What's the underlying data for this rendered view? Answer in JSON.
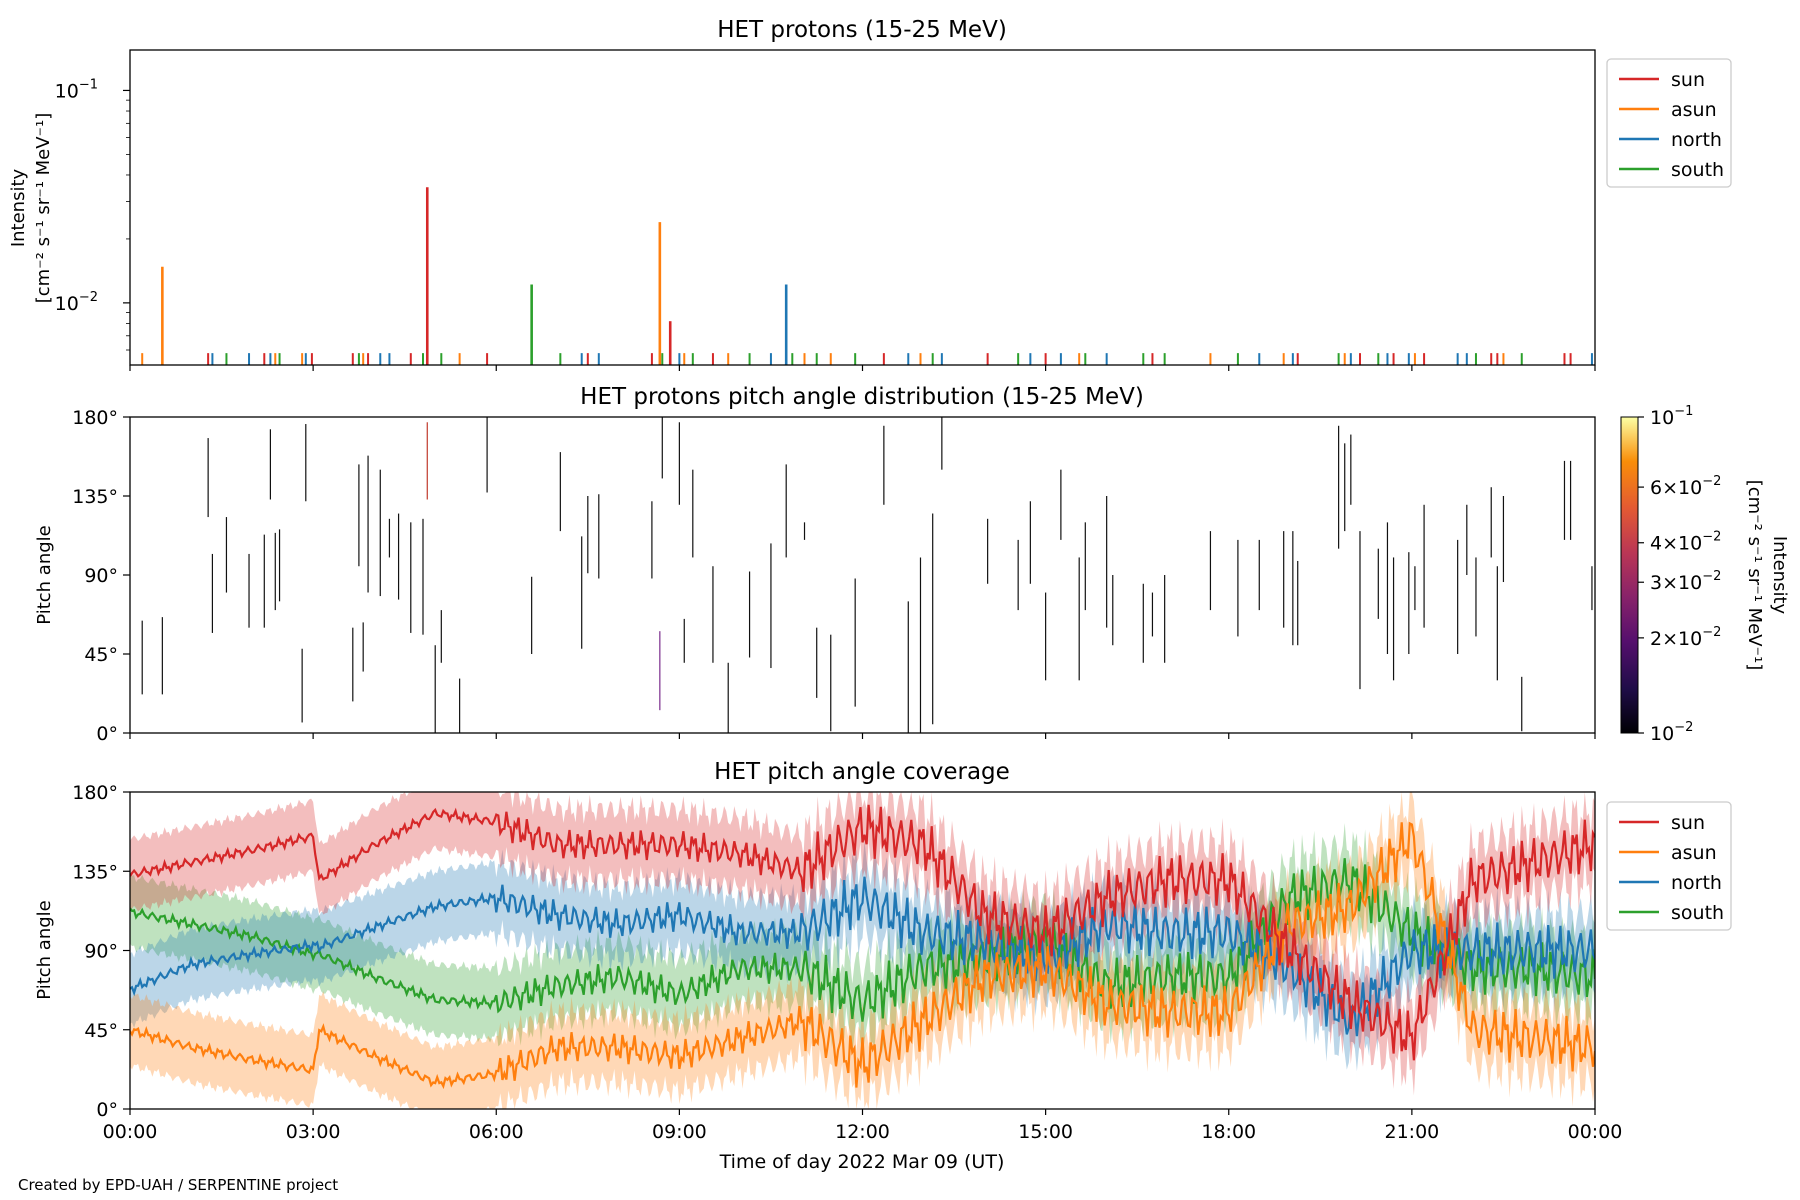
{
  "figure": {
    "credit": "Created by EPD-UAH / SERPENTINE project",
    "xlabel": "Time of day 2022 Mar 09 (UT)",
    "xticks": [
      "00:00",
      "03:00",
      "06:00",
      "09:00",
      "12:00",
      "15:00",
      "18:00",
      "21:00",
      "00:00"
    ]
  },
  "colors": {
    "sun": "#d62728",
    "asun": "#ff7f0e",
    "north": "#1f77b4",
    "south": "#2ca02c"
  },
  "chart_data": [
    {
      "type": "bar",
      "title": "HET protons (15-25 MeV)",
      "ylabel_line1": "Intensity",
      "ylabel_line2": "[cm⁻² s⁻¹ sr⁻¹ MeV⁻¹]",
      "yscale": "log",
      "ylim": [
        0.0051,
        0.155
      ],
      "yticks": [
        {
          "value": 0.1,
          "base": "10",
          "exp": "−1"
        },
        {
          "value": 0.01,
          "base": "10",
          "exp": "−2"
        }
      ],
      "xlim_hours": [
        0,
        24
      ],
      "legend": [
        "sun",
        "asun",
        "north",
        "south"
      ],
      "legend_position": "right",
      "spikes": [
        {
          "series": "sun",
          "t": 4.87,
          "value": 0.035
        },
        {
          "series": "asun",
          "t": 0.53,
          "value": 0.0148
        },
        {
          "series": "asun",
          "t": 8.68,
          "value": 0.024
        },
        {
          "series": "north",
          "t": 10.75,
          "value": 0.0122
        },
        {
          "series": "south",
          "t": 6.58,
          "value": 0.0122
        },
        {
          "series": "sun",
          "t": 8.85,
          "value": 0.0082
        }
      ],
      "small_value": 0.0058,
      "small_events": [
        [
          "asun",
          0.2
        ],
        [
          "sun",
          1.28
        ],
        [
          "north",
          1.35
        ],
        [
          "south",
          1.58
        ],
        [
          "north",
          1.95
        ],
        [
          "sun",
          2.2
        ],
        [
          "north",
          2.3
        ],
        [
          "asun",
          2.38
        ],
        [
          "south",
          2.45
        ],
        [
          "asun",
          2.82
        ],
        [
          "north",
          2.88
        ],
        [
          "sun",
          2.98
        ],
        [
          "sun",
          3.65
        ],
        [
          "south",
          3.75
        ],
        [
          "asun",
          3.82
        ],
        [
          "sun",
          3.9
        ],
        [
          "north",
          4.1
        ],
        [
          "north",
          4.25
        ],
        [
          "sun",
          4.6
        ],
        [
          "south",
          4.8
        ],
        [
          "south",
          5.1
        ],
        [
          "asun",
          5.4
        ],
        [
          "sun",
          5.85
        ],
        [
          "south",
          7.05
        ],
        [
          "north",
          7.4
        ],
        [
          "sun",
          7.5
        ],
        [
          "north",
          7.68
        ],
        [
          "sun",
          8.55
        ],
        [
          "south",
          8.72
        ],
        [
          "north",
          9.0
        ],
        [
          "asun",
          9.08
        ],
        [
          "south",
          9.22
        ],
        [
          "sun",
          9.55
        ],
        [
          "asun",
          9.8
        ],
        [
          "south",
          10.15
        ],
        [
          "north",
          10.5
        ],
        [
          "south",
          10.85
        ],
        [
          "asun",
          11.05
        ],
        [
          "south",
          11.25
        ],
        [
          "asun",
          11.48
        ],
        [
          "south",
          11.88
        ],
        [
          "sun",
          12.35
        ],
        [
          "north",
          12.75
        ],
        [
          "asun",
          12.95
        ],
        [
          "south",
          13.15
        ],
        [
          "north",
          13.3
        ],
        [
          "sun",
          14.05
        ],
        [
          "south",
          14.55
        ],
        [
          "north",
          14.75
        ],
        [
          "sun",
          15.0
        ],
        [
          "north",
          15.25
        ],
        [
          "asun",
          15.55
        ],
        [
          "south",
          15.65
        ],
        [
          "north",
          16.0
        ],
        [
          "south",
          16.6
        ],
        [
          "sun",
          16.75
        ],
        [
          "south",
          16.95
        ],
        [
          "asun",
          17.7
        ],
        [
          "south",
          18.15
        ],
        [
          "north",
          18.5
        ],
        [
          "asun",
          18.9
        ],
        [
          "north",
          19.05
        ],
        [
          "sun",
          19.13
        ],
        [
          "south",
          19.8
        ],
        [
          "asun",
          19.9
        ],
        [
          "north",
          20.0
        ],
        [
          "sun",
          20.15
        ],
        [
          "south",
          20.45
        ],
        [
          "north",
          20.6
        ],
        [
          "sun",
          20.7
        ],
        [
          "north",
          20.95
        ],
        [
          "asun",
          21.05
        ],
        [
          "sun",
          21.2
        ],
        [
          "north",
          21.75
        ],
        [
          "north",
          21.9
        ],
        [
          "south",
          22.05
        ],
        [
          "sun",
          22.3
        ],
        [
          "sun",
          22.4
        ],
        [
          "asun",
          22.5
        ],
        [
          "south",
          22.8
        ],
        [
          "sun",
          23.5
        ],
        [
          "sun",
          23.6
        ],
        [
          "north",
          23.95
        ]
      ]
    },
    {
      "type": "heatmap",
      "title": "HET protons pitch angle distribution (15-25 MeV)",
      "ylabel": "Pitch angle",
      "ylim": [
        0,
        180
      ],
      "yticks": [
        "0°",
        "45°",
        "90°",
        "135°",
        "180°"
      ],
      "colorbar_label_line1": "Intensity",
      "colorbar_label_line2": "[cm⁻² s⁻¹ sr⁻¹ MeV⁻¹]",
      "colorbar_scale": "log",
      "colorbar_range": [
        0.01,
        0.1
      ],
      "colorbar_ticks": [
        {
          "value": 0.1,
          "label": "10",
          "sup": "−1"
        },
        {
          "value": 0.06,
          "label": "6×10",
          "sup": "−2"
        },
        {
          "value": 0.04,
          "label": "4×10",
          "sup": "−2"
        },
        {
          "value": 0.03,
          "label": "3×10",
          "sup": "−2"
        },
        {
          "value": 0.02,
          "label": "2×10",
          "sup": "−2"
        },
        {
          "value": 0.01,
          "label": "10",
          "sup": "−2"
        }
      ],
      "colormap": "inferno",
      "segments": [
        [
          0.2,
          22,
          64
        ],
        [
          0.53,
          22,
          66
        ],
        [
          1.28,
          123,
          168
        ],
        [
          1.35,
          57,
          102
        ],
        [
          1.58,
          80,
          123
        ],
        [
          1.95,
          60,
          102
        ],
        [
          2.2,
          60,
          113
        ],
        [
          2.3,
          133,
          173
        ],
        [
          2.38,
          70,
          114
        ],
        [
          2.45,
          75,
          116
        ],
        [
          2.82,
          6,
          48
        ],
        [
          2.88,
          132,
          176
        ],
        [
          3.65,
          18,
          60
        ],
        [
          3.75,
          95,
          153
        ],
        [
          3.82,
          35,
          63
        ],
        [
          3.9,
          80,
          158
        ],
        [
          4.1,
          78,
          150
        ],
        [
          4.25,
          100,
          122
        ],
        [
          4.4,
          76,
          125
        ],
        [
          4.6,
          57,
          120
        ],
        [
          4.87,
          133,
          177
        ],
        [
          4.8,
          56,
          122
        ],
        [
          5.0,
          0,
          50
        ],
        [
          5.1,
          40,
          70
        ],
        [
          5.4,
          0,
          31
        ],
        [
          5.85,
          137,
          180
        ],
        [
          6.58,
          45,
          89
        ],
        [
          7.05,
          115,
          160
        ],
        [
          7.4,
          48,
          112
        ],
        [
          7.5,
          91,
          135
        ],
        [
          7.68,
          88,
          136
        ],
        [
          8.55,
          88,
          132
        ],
        [
          8.68,
          13,
          58
        ],
        [
          8.72,
          145,
          180
        ],
        [
          9.0,
          130,
          177
        ],
        [
          9.08,
          40,
          65
        ],
        [
          9.22,
          100,
          150
        ],
        [
          9.55,
          40,
          95
        ],
        [
          9.8,
          0,
          40
        ],
        [
          10.15,
          43,
          92
        ],
        [
          10.5,
          37,
          108
        ],
        [
          10.75,
          100,
          153
        ],
        [
          11.05,
          110,
          120
        ],
        [
          11.25,
          20,
          60
        ],
        [
          11.48,
          1,
          56
        ],
        [
          11.88,
          15,
          88
        ],
        [
          12.35,
          130,
          175
        ],
        [
          12.75,
          0,
          75
        ],
        [
          12.95,
          0,
          100
        ],
        [
          13.15,
          5,
          125
        ],
        [
          13.3,
          150,
          180
        ],
        [
          14.05,
          85,
          122
        ],
        [
          14.55,
          70,
          110
        ],
        [
          14.75,
          85,
          132
        ],
        [
          15.0,
          30,
          80
        ],
        [
          15.25,
          110,
          150
        ],
        [
          15.55,
          30,
          100
        ],
        [
          15.65,
          70,
          120
        ],
        [
          16.0,
          60,
          135
        ],
        [
          16.1,
          50,
          90
        ],
        [
          16.6,
          40,
          85
        ],
        [
          16.75,
          55,
          80
        ],
        [
          16.95,
          40,
          90
        ],
        [
          17.7,
          70,
          115
        ],
        [
          18.15,
          55,
          110
        ],
        [
          18.5,
          70,
          110
        ],
        [
          18.9,
          60,
          115
        ],
        [
          19.05,
          50,
          115
        ],
        [
          19.13,
          50,
          98
        ],
        [
          19.8,
          105,
          175
        ],
        [
          19.9,
          115,
          165
        ],
        [
          20.0,
          130,
          170
        ],
        [
          20.15,
          25,
          115
        ],
        [
          20.45,
          65,
          105
        ],
        [
          20.6,
          45,
          120
        ],
        [
          20.7,
          30,
          100
        ],
        [
          20.95,
          45,
          103
        ],
        [
          21.05,
          70,
          95
        ],
        [
          21.2,
          60,
          130
        ],
        [
          21.75,
          45,
          110
        ],
        [
          21.9,
          90,
          130
        ],
        [
          22.05,
          55,
          100
        ],
        [
          22.3,
          100,
          140
        ],
        [
          22.4,
          30,
          95
        ],
        [
          22.5,
          86,
          135
        ],
        [
          22.8,
          1,
          32
        ],
        [
          23.5,
          110,
          155
        ],
        [
          23.6,
          110,
          155
        ],
        [
          23.95,
          70,
          95
        ]
      ]
    },
    {
      "type": "line",
      "title": "HET pitch angle coverage",
      "ylabel": "Pitch angle",
      "ylim": [
        0,
        180
      ],
      "yticks": [
        "0°",
        "45°",
        "90°",
        "135°",
        "180°"
      ],
      "xlim_hours": [
        0,
        24
      ],
      "legend": [
        "sun",
        "asun",
        "north",
        "south"
      ],
      "legend_position": "right",
      "band_halfwidth_deg": 20,
      "series": [
        {
          "name": "sun",
          "t": [
            0,
            1,
            2,
            3,
            3.1,
            4,
            5,
            6,
            7,
            8,
            9,
            10,
            11,
            12,
            13,
            14,
            15,
            16,
            17,
            18,
            19,
            20,
            21,
            22,
            23,
            24
          ],
          "values": [
            133,
            140,
            147,
            155,
            130,
            150,
            168,
            163,
            150,
            150,
            150,
            145,
            135,
            160,
            150,
            110,
            100,
            120,
            130,
            130,
            90,
            60,
            40,
            130,
            140,
            150
          ]
        },
        {
          "name": "asun",
          "t": [
            0,
            1,
            2,
            3,
            3.1,
            4,
            5,
            6,
            7,
            8,
            9,
            10,
            11,
            12,
            13,
            14,
            15,
            16,
            17,
            18,
            19,
            20,
            21,
            22,
            23,
            24
          ],
          "values": [
            45,
            35,
            28,
            22,
            45,
            30,
            15,
            20,
            35,
            35,
            30,
            40,
            50,
            25,
            50,
            75,
            80,
            60,
            55,
            55,
            105,
            115,
            155,
            45,
            40,
            35
          ]
        },
        {
          "name": "north",
          "t": [
            0,
            1,
            2,
            3,
            3.1,
            4,
            5,
            6,
            7,
            8,
            9,
            10,
            11,
            12,
            13,
            14,
            15,
            16,
            17,
            18,
            19,
            20,
            21,
            22,
            23,
            24
          ],
          "values": [
            68,
            82,
            88,
            93,
            92,
            103,
            115,
            120,
            110,
            105,
            110,
            100,
            100,
            120,
            100,
            95,
            85,
            105,
            100,
            100,
            80,
            50,
            90,
            90,
            90,
            90
          ]
        },
        {
          "name": "south",
          "t": [
            0,
            1,
            2,
            3,
            3.1,
            4,
            5,
            6,
            7,
            8,
            9,
            10,
            11,
            12,
            13,
            14,
            15,
            16,
            17,
            18,
            19,
            20,
            21,
            22,
            23,
            24
          ],
          "values": [
            112,
            105,
            98,
            88,
            88,
            75,
            62,
            60,
            70,
            75,
            65,
            80,
            80,
            60,
            80,
            85,
            95,
            70,
            75,
            75,
            120,
            130,
            100,
            80,
            80,
            75
          ]
        }
      ]
    }
  ]
}
